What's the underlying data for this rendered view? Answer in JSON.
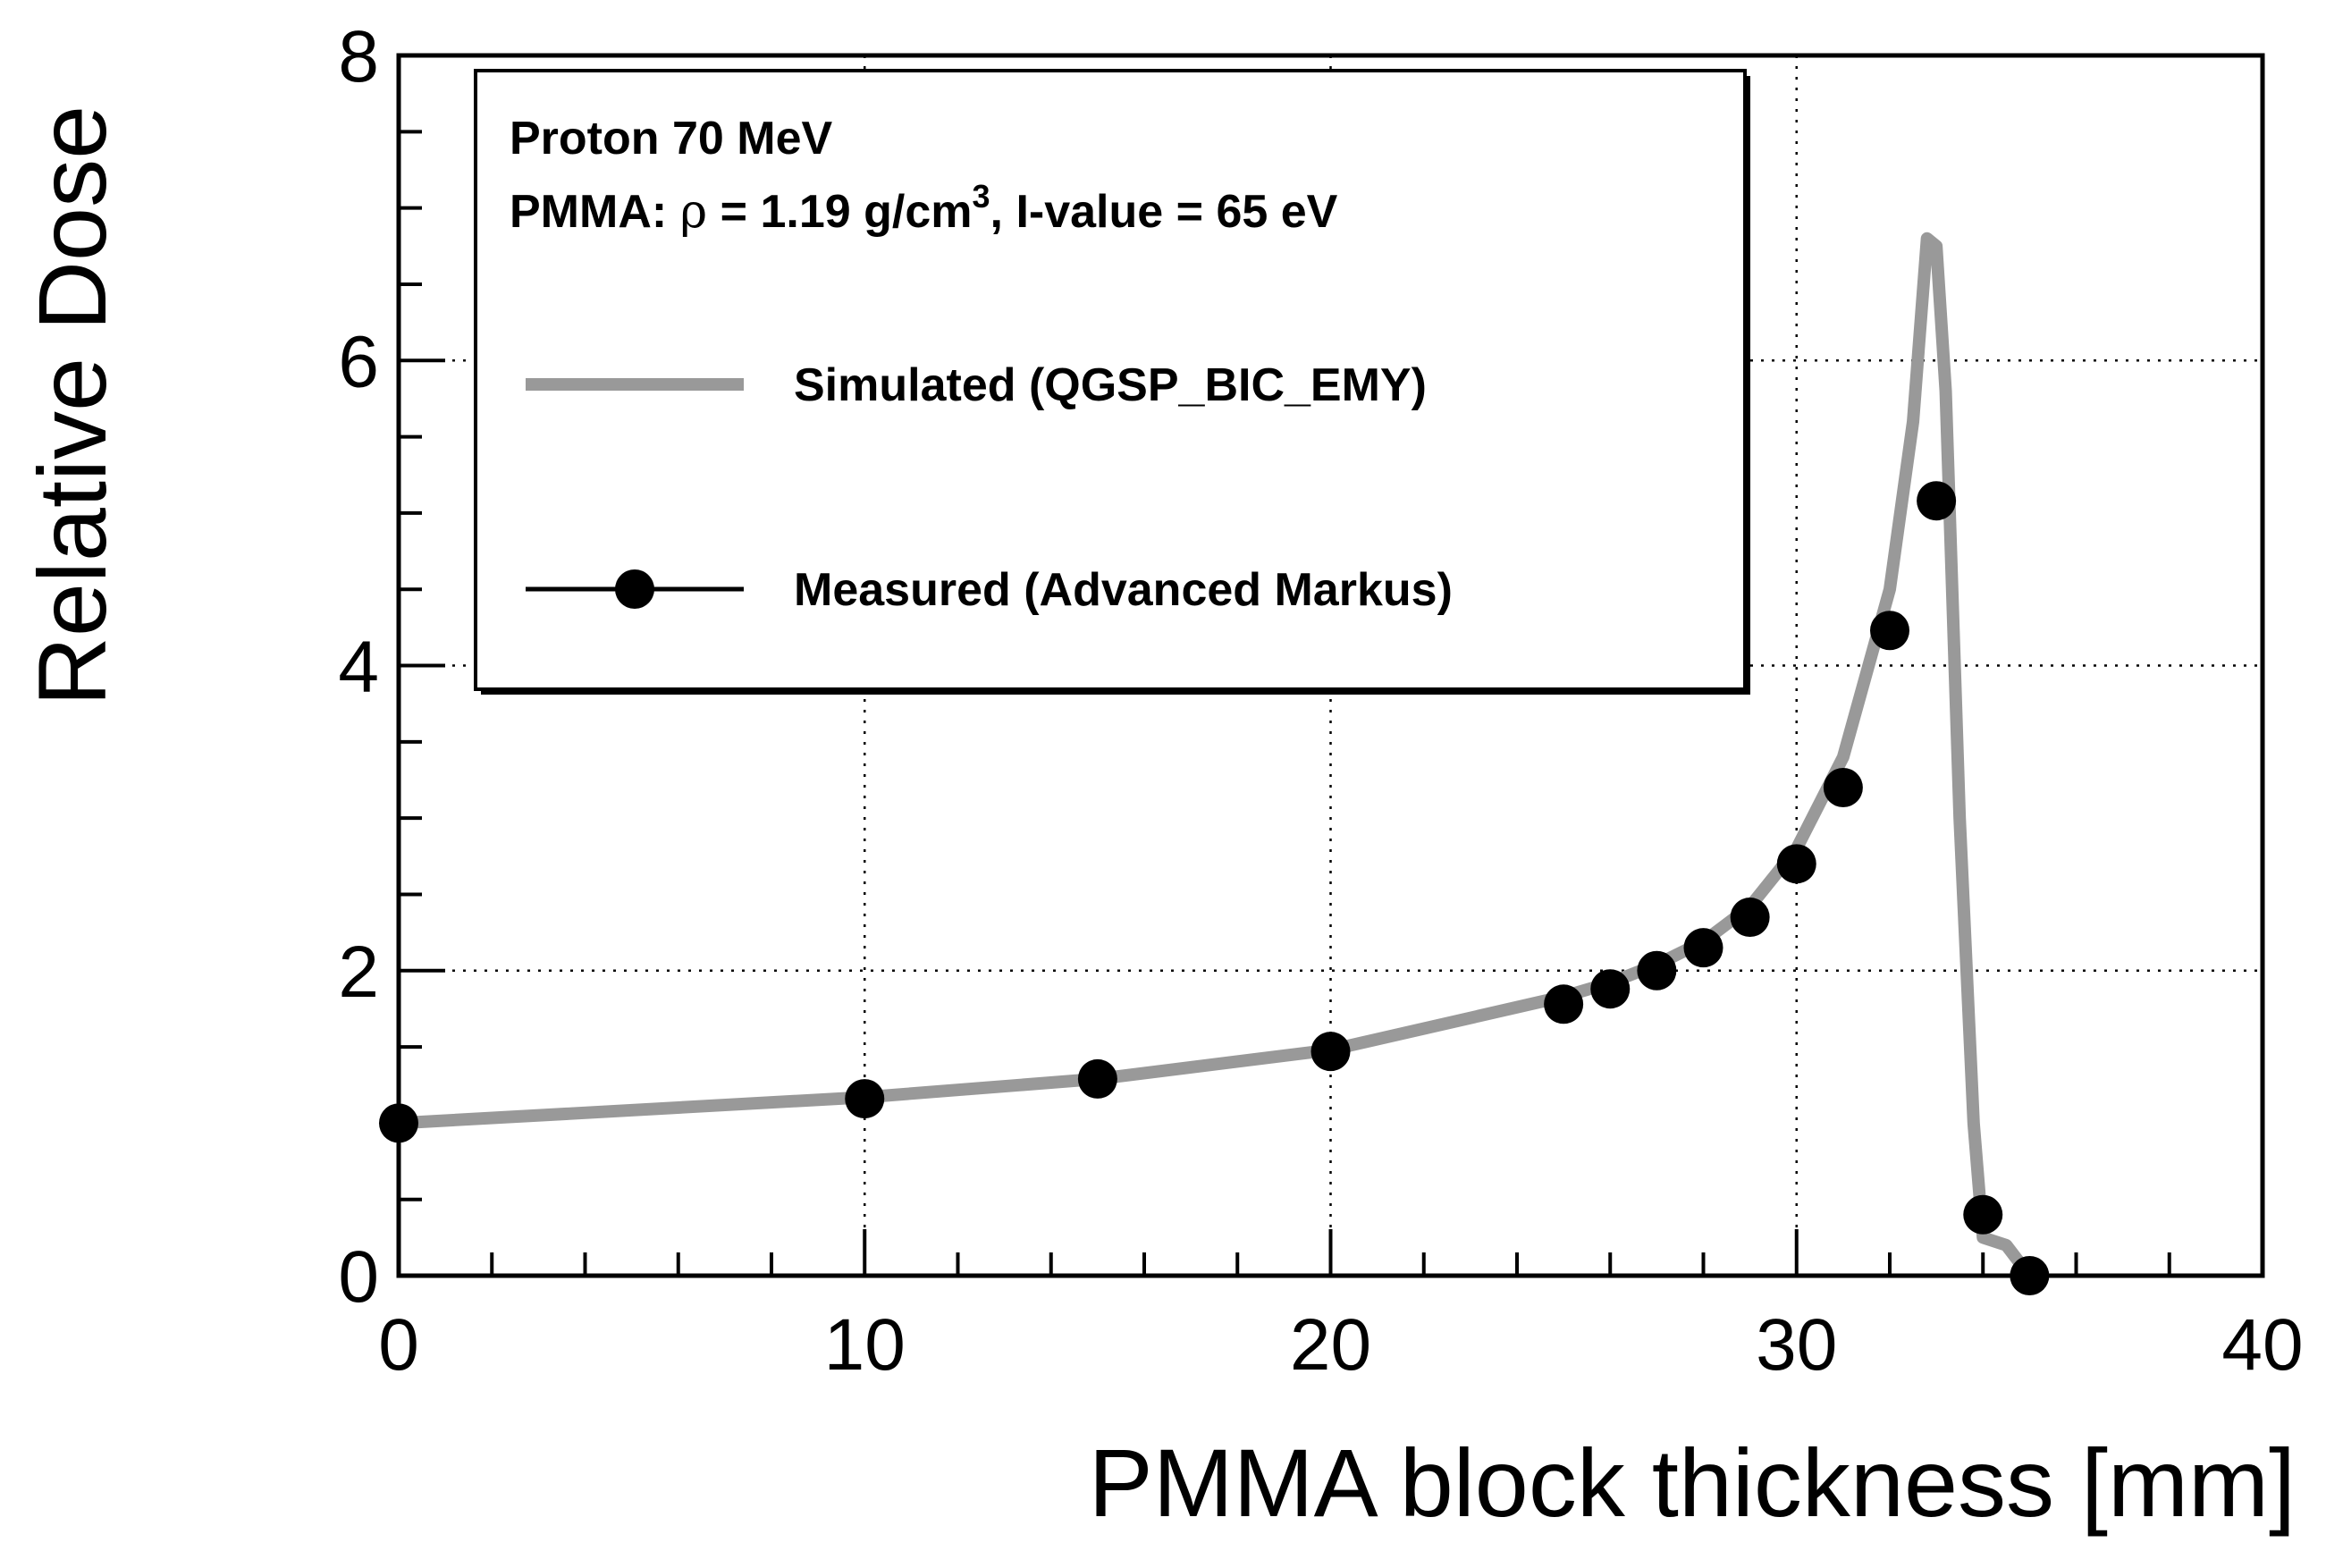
{
  "chart_data": {
    "type": "line",
    "title": "",
    "xlabel": "PMMA block thickness [mm]",
    "ylabel": "Relative Dose",
    "xlim": [
      0,
      40
    ],
    "ylim": [
      0,
      8
    ],
    "x_ticks": [
      0,
      10,
      20,
      30,
      40
    ],
    "y_ticks": [
      0,
      2,
      4,
      6,
      8
    ],
    "x_tick_labels": [
      "0",
      "10",
      "20",
      "30",
      "40"
    ],
    "y_tick_labels": [
      "0",
      "2",
      "4",
      "6",
      "8"
    ],
    "grid": true,
    "legend_position": "top-left",
    "annotations": {
      "line1": "Proton 70 MeV",
      "line2_prefix": "PMMA: ",
      "rho": "ρ",
      "line2_mid": " = 1.19 g/cm",
      "superscript": "3",
      "line2_suffix": ", I-value = 65 eV"
    },
    "series": [
      {
        "name": "Simulated (QGSP_BIC_EMY)",
        "style": "line",
        "color": "#999999",
        "x": [
          0,
          10,
          15,
          20,
          25,
          26,
          27,
          28,
          29,
          30,
          31,
          32,
          32.5,
          32.8,
          33.0,
          33.2,
          33.5,
          33.8,
          34.0,
          34.5,
          35.0
        ],
        "y": [
          1.0,
          1.17,
          1.29,
          1.48,
          1.83,
          1.92,
          2.04,
          2.19,
          2.42,
          2.8,
          3.4,
          4.5,
          5.6,
          6.8,
          6.75,
          5.8,
          3.0,
          1.0,
          0.25,
          0.2,
          0.0
        ]
      },
      {
        "name": "Measured (Advanced Markus)",
        "style": "markers",
        "color": "#000000",
        "x": [
          0,
          10,
          15,
          20,
          25,
          26,
          27,
          28,
          29,
          30,
          31,
          32,
          33,
          34,
          35
        ],
        "y": [
          1.0,
          1.16,
          1.29,
          1.47,
          1.78,
          1.88,
          2.0,
          2.15,
          2.35,
          2.7,
          3.2,
          4.23,
          5.08,
          0.4,
          0.0
        ]
      }
    ]
  }
}
